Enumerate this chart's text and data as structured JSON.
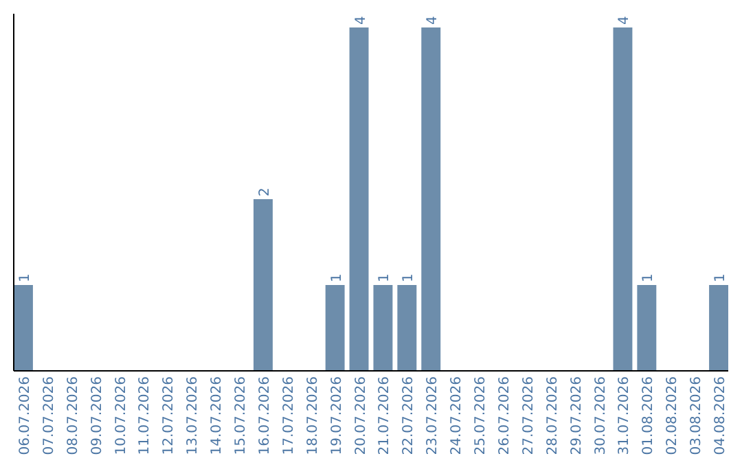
{
  "chart_data": {
    "type": "bar",
    "categories": [
      "06.07.2026",
      "07.07.2026",
      "08.07.2026",
      "09.07.2026",
      "10.07.2026",
      "11.07.2026",
      "12.07.2026",
      "13.07.2026",
      "14.07.2026",
      "15.07.2026",
      "16.07.2026",
      "17.07.2026",
      "18.07.2026",
      "19.07.2026",
      "20.07.2026",
      "21.07.2026",
      "22.07.2026",
      "23.07.2026",
      "24.07.2026",
      "25.07.2026",
      "26.07.2026",
      "27.07.2026",
      "28.07.2026",
      "29.07.2026",
      "30.07.2026",
      "31.07.2026",
      "01.08.2026",
      "02.08.2026",
      "03.08.2026",
      "04.08.2026"
    ],
    "values": [
      1,
      0,
      0,
      0,
      0,
      0,
      0,
      0,
      0,
      0,
      2,
      0,
      0,
      1,
      4,
      1,
      1,
      4,
      0,
      0,
      0,
      0,
      0,
      0,
      0,
      4,
      1,
      0,
      0,
      1
    ],
    "value_labels": [
      "1",
      null,
      null,
      null,
      null,
      null,
      null,
      null,
      null,
      null,
      "2",
      null,
      null,
      "1",
      "4",
      "1",
      "1",
      "4",
      null,
      null,
      null,
      null,
      null,
      null,
      null,
      "4",
      "1",
      null,
      null,
      "1"
    ],
    "color": "#6d8dab",
    "ylim": [
      0,
      4
    ]
  }
}
